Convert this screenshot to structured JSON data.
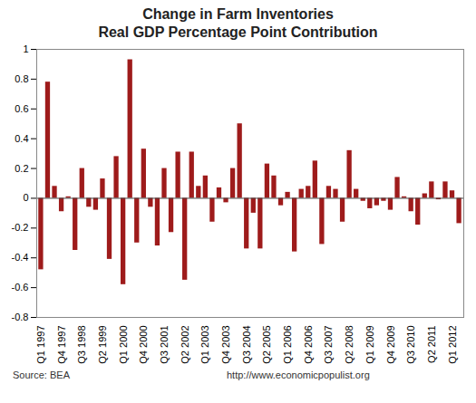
{
  "chart_data": {
    "type": "bar",
    "title": "Change in Farm Inventories",
    "subtitle": "Real GDP Percentage Point Contribution",
    "annotations": [
      "Source: BEA",
      "http://www.economicpopulist.org"
    ],
    "categories": [
      "Q1 1997",
      null,
      null,
      "Q4 1997",
      null,
      null,
      "Q3 1998",
      null,
      null,
      "Q2 1999",
      null,
      null,
      "Q1 2000",
      null,
      null,
      "Q4 2000",
      null,
      null,
      "Q3 2001",
      null,
      null,
      "Q2 2002",
      null,
      null,
      "Q1 2003",
      null,
      null,
      "Q4 2003",
      null,
      null,
      "Q3 2004",
      null,
      null,
      "Q2 2005",
      null,
      null,
      "Q1 2006",
      null,
      null,
      "Q4 2006",
      null,
      null,
      "Q3 2007",
      null,
      null,
      "Q2 2008",
      null,
      null,
      "Q1 2009",
      null,
      null,
      "Q4 2009",
      null,
      null,
      "Q3 2010",
      null,
      null,
      "Q2 2011",
      null,
      null,
      "Q1 2012",
      null
    ],
    "values": [
      -0.48,
      0.78,
      0.08,
      -0.09,
      0.01,
      -0.35,
      0.2,
      -0.06,
      -0.08,
      0.13,
      -0.41,
      0.28,
      -0.58,
      0.93,
      -0.3,
      0.33,
      -0.06,
      -0.32,
      0.2,
      -0.23,
      0.31,
      -0.55,
      0.31,
      0.08,
      0.15,
      -0.16,
      0.07,
      -0.03,
      0.2,
      0.5,
      -0.34,
      -0.1,
      -0.34,
      0.23,
      0.15,
      -0.05,
      0.04,
      -0.36,
      0.06,
      0.08,
      0.25,
      -0.31,
      0.08,
      0.06,
      -0.16,
      0.32,
      0.06,
      -0.02,
      -0.07,
      -0.05,
      -0.02,
      -0.08,
      0.14,
      0.01,
      -0.09,
      -0.18,
      0.03,
      0.11,
      -0.01,
      0.11,
      0.05,
      -0.17
    ],
    "color": "#9e1b1b",
    "ylim": [
      -0.8,
      1
    ],
    "yticks": [
      -0.8,
      -0.6,
      -0.4,
      -0.2,
      0,
      0.2,
      0.4,
      0.6,
      0.8,
      1
    ],
    "grid": false
  }
}
